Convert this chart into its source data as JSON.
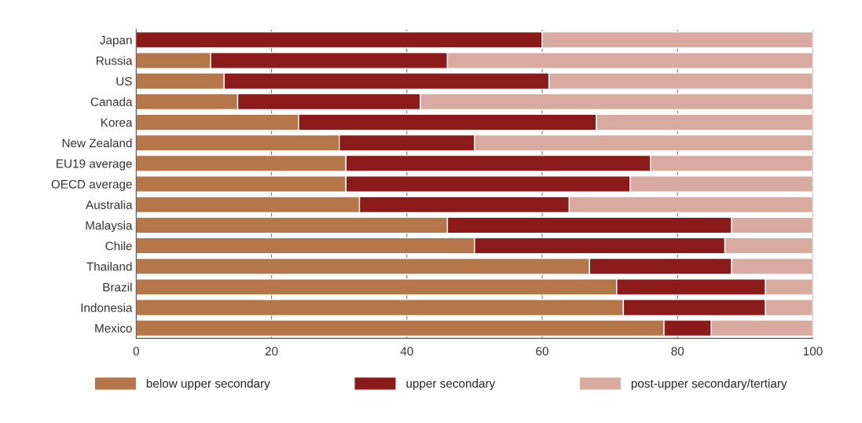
{
  "chart_data": {
    "type": "bar",
    "orientation": "horizontal",
    "stacked": true,
    "categories": [
      "Japan",
      "Russia",
      "US",
      "Canada",
      "Korea",
      "New Zealand",
      "EU19 average",
      "OECD average",
      "Australia",
      "Malaysia",
      "Chile",
      "Thailand",
      "Brazil",
      "Indonesia",
      "Mexico"
    ],
    "series": [
      {
        "name": "below upper secondary",
        "color": "#b5774a",
        "values": [
          0,
          11,
          13,
          15,
          24,
          30,
          31,
          31,
          33,
          46,
          50,
          67,
          71,
          72,
          78
        ]
      },
      {
        "name": "upper secondary",
        "color": "#8b1a1a",
        "values": [
          60,
          35,
          48,
          27,
          44,
          20,
          45,
          42,
          31,
          42,
          37,
          21,
          22,
          21,
          7
        ]
      },
      {
        "name": "post-upper secondary/tertiary",
        "color": "#d9aaa0",
        "values": [
          40,
          54,
          39,
          58,
          32,
          50,
          24,
          27,
          36,
          12,
          13,
          12,
          7,
          7,
          15
        ]
      }
    ],
    "xlim": [
      0,
      100
    ],
    "xticks": [
      0,
      20,
      40,
      60,
      80,
      100
    ],
    "grid": "x",
    "legend": "bottom"
  }
}
